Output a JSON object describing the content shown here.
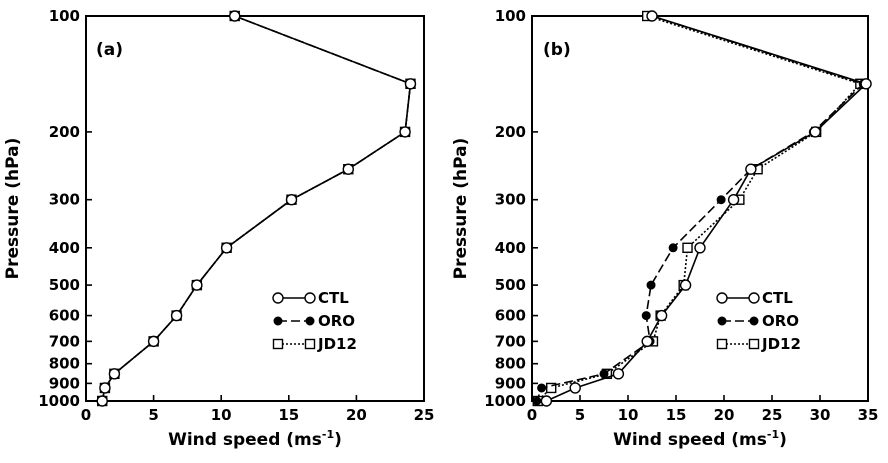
{
  "chart_data": [
    {
      "type": "line",
      "panel_label": "(a)",
      "xlabel": "Wind speed (ms",
      "xlabel_sup": "-1",
      "xlabel_close": ")",
      "ylabel": "Pressure (hPa)",
      "xlim": [
        0,
        25
      ],
      "y_scale": "log",
      "ylim": [
        1000,
        100
      ],
      "xticks": [
        0,
        5,
        10,
        15,
        20,
        25
      ],
      "yticks": [
        100,
        200,
        300,
        400,
        500,
        600,
        700,
        800,
        900,
        1000
      ],
      "legend": {
        "placement": "lower-right"
      },
      "series": [
        {
          "name": "CTL",
          "marker": "circle-open",
          "style": "solid",
          "points": [
            [
              11.0,
              100
            ],
            [
              24.0,
              150
            ],
            [
              23.6,
              200
            ],
            [
              19.4,
              250
            ],
            [
              15.2,
              300
            ],
            [
              10.4,
              400
            ],
            [
              8.2,
              500
            ],
            [
              6.7,
              600
            ],
            [
              5.0,
              700
            ],
            [
              2.1,
              850
            ],
            [
              1.4,
              925
            ],
            [
              1.2,
              1000
            ]
          ]
        },
        {
          "name": "ORO",
          "marker": "circle-filled",
          "style": "dash",
          "points": [
            [
              11.0,
              100
            ],
            [
              24.0,
              150
            ],
            [
              23.6,
              200
            ],
            [
              19.4,
              250
            ],
            [
              15.2,
              300
            ],
            [
              10.4,
              400
            ],
            [
              8.2,
              500
            ],
            [
              6.7,
              600
            ],
            [
              5.0,
              700
            ],
            [
              2.1,
              850
            ],
            [
              1.4,
              925
            ],
            [
              1.2,
              1000
            ]
          ]
        },
        {
          "name": "JD12",
          "marker": "square-open",
          "style": "dot",
          "points": [
            [
              11.0,
              100
            ],
            [
              24.0,
              150
            ],
            [
              23.6,
              200
            ],
            [
              19.4,
              250
            ],
            [
              15.2,
              300
            ],
            [
              10.4,
              400
            ],
            [
              8.2,
              500
            ],
            [
              6.7,
              600
            ],
            [
              5.0,
              700
            ],
            [
              2.1,
              850
            ],
            [
              1.4,
              925
            ],
            [
              1.2,
              1000
            ]
          ]
        }
      ]
    },
    {
      "type": "line",
      "panel_label": "(b)",
      "xlabel": "Wind speed (ms",
      "xlabel_sup": "-1",
      "xlabel_close": ")",
      "ylabel": "Pressure (hPa)",
      "xlim": [
        0,
        35
      ],
      "y_scale": "log",
      "ylim": [
        1000,
        100
      ],
      "xticks": [
        0,
        5,
        10,
        15,
        20,
        25,
        30,
        35
      ],
      "yticks": [
        100,
        200,
        300,
        400,
        500,
        600,
        700,
        800,
        900,
        1000
      ],
      "legend": {
        "placement": "lower-right"
      },
      "series": [
        {
          "name": "CTL",
          "marker": "circle-open",
          "style": "solid",
          "points": [
            [
              12.5,
              100
            ],
            [
              34.8,
              150
            ],
            [
              29.5,
              200
            ],
            [
              22.8,
              250
            ],
            [
              21.0,
              300
            ],
            [
              17.5,
              400
            ],
            [
              16.0,
              500
            ],
            [
              13.5,
              600
            ],
            [
              12.0,
              700
            ],
            [
              9.0,
              850
            ],
            [
              4.5,
              925
            ],
            [
              1.5,
              1000
            ]
          ]
        },
        {
          "name": "ORO",
          "marker": "circle-filled",
          "style": "dash",
          "points": [
            [
              12.5,
              100
            ],
            [
              34.5,
              150
            ],
            [
              29.3,
              200
            ],
            [
              22.8,
              250
            ],
            [
              19.7,
              300
            ],
            [
              14.7,
              400
            ],
            [
              12.4,
              500
            ],
            [
              11.9,
              600
            ],
            [
              12.3,
              700
            ],
            [
              7.5,
              850
            ],
            [
              1.0,
              925
            ],
            [
              0.5,
              1000
            ]
          ]
        },
        {
          "name": "JD12",
          "marker": "square-open",
          "style": "dot",
          "points": [
            [
              12.0,
              100
            ],
            [
              34.2,
              150
            ],
            [
              29.6,
              200
            ],
            [
              23.5,
              250
            ],
            [
              21.6,
              300
            ],
            [
              16.2,
              400
            ],
            [
              15.8,
              500
            ],
            [
              13.4,
              600
            ],
            [
              12.6,
              700
            ],
            [
              7.8,
              850
            ],
            [
              2.0,
              925
            ],
            [
              0.6,
              1000
            ]
          ]
        }
      ]
    }
  ]
}
